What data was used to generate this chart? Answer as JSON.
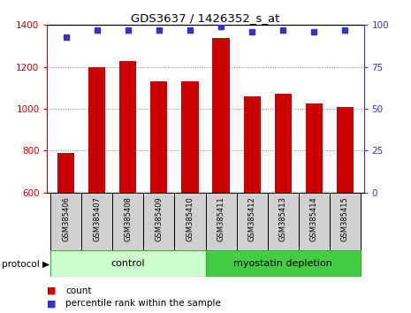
{
  "title": "GDS3637 / 1426352_s_at",
  "samples": [
    "GSM385406",
    "GSM385407",
    "GSM385408",
    "GSM385409",
    "GSM385410",
    "GSM385411",
    "GSM385412",
    "GSM385413",
    "GSM385414",
    "GSM385415"
  ],
  "counts": [
    790,
    1200,
    1230,
    1130,
    1130,
    1340,
    1060,
    1070,
    1025,
    1010
  ],
  "percentile_ranks": [
    93,
    97,
    97,
    97,
    97,
    99,
    96,
    97,
    96,
    97
  ],
  "ylim_left": [
    600,
    1400
  ],
  "ylim_right": [
    0,
    100
  ],
  "yticks_left": [
    600,
    800,
    1000,
    1200,
    1400
  ],
  "yticks_right": [
    0,
    25,
    50,
    75,
    100
  ],
  "bar_color": "#cc0000",
  "dot_color": "#3333cc",
  "control_color": "#ccffcc",
  "myostatin_color": "#44cc44",
  "label_bg_color": "#d0d0d0",
  "grid_color": "#888888"
}
